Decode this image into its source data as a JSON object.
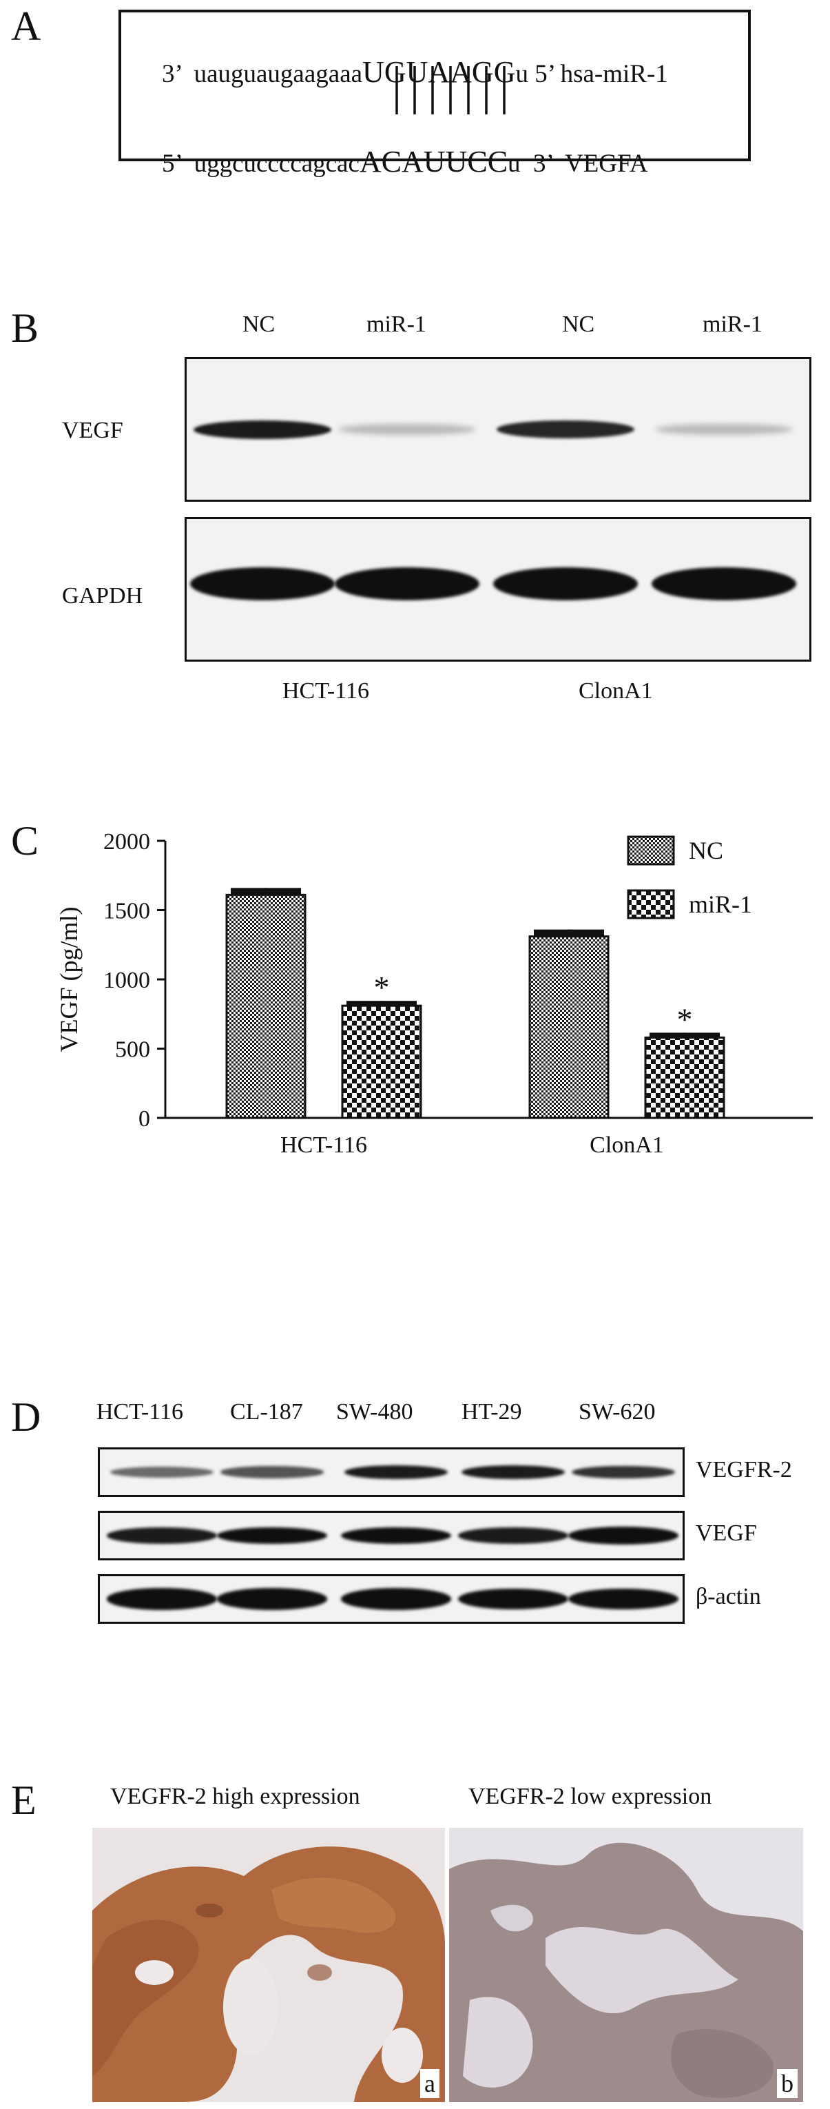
{
  "panels": {
    "a": {
      "letter": "A",
      "mirna": {
        "end3": "3’",
        "seq_lower": "uauguaugaagaaa",
        "seq_upper": "UGUAAGG",
        "seq_tail": "u",
        "end5": "5’",
        "name": "hsa-miR-1"
      },
      "target": {
        "end5": "5’",
        "seq_lower": "uggcuccccagcac",
        "seq_upper": "ACAUUCC",
        "seq_tail": "u",
        "end3": "3’",
        "name": "VEGFA"
      },
      "pair_count": 7
    },
    "b": {
      "letter": "B",
      "lanes": [
        "NC",
        "miR-1",
        "NC",
        "miR-1"
      ],
      "rows": [
        {
          "label": "VEGF",
          "levels": [
            0.8,
            0.1,
            0.75,
            0.1
          ]
        },
        {
          "label": "GAPDH",
          "levels": [
            1.0,
            1.0,
            1.0,
            1.0
          ]
        }
      ],
      "groups": [
        "HCT-116",
        "ClonA1"
      ]
    },
    "c": {
      "letter": "C"
    },
    "d": {
      "letter": "D",
      "lanes": [
        "HCT-116",
        "CL-187",
        "SW-480",
        "HT-29",
        "SW-620"
      ],
      "rows": [
        {
          "label": "VEGFR-2",
          "levels": [
            0.45,
            0.55,
            0.8,
            0.8,
            0.7
          ]
        },
        {
          "label": "VEGF",
          "levels": [
            0.8,
            0.85,
            0.85,
            0.8,
            0.95
          ]
        },
        {
          "label": "β-actin",
          "levels": [
            0.95,
            0.95,
            0.95,
            0.9,
            0.9
          ]
        }
      ]
    },
    "e": {
      "letter": "E",
      "captions": [
        "VEGFR-2 high expression",
        "VEGFR-2 low expression"
      ],
      "sublabels": [
        "a",
        "b"
      ],
      "colors": {
        "high_stain": "#b2683e",
        "low_stain": "#9d8d8e",
        "background": "#e8e6ea"
      }
    }
  },
  "chart_data": {
    "type": "bar",
    "categories": [
      "HCT-116",
      "ClonA1"
    ],
    "series": [
      {
        "name": "NC",
        "values": [
          1610,
          1310
        ],
        "errors": [
          50,
          50
        ]
      },
      {
        "name": "miR-1",
        "values": [
          810,
          580
        ],
        "errors": [
          35,
          35
        ]
      }
    ],
    "significance": [
      "*",
      "*"
    ],
    "ylabel": "VEGF (pg/ml)",
    "xlabel": "",
    "yticks": [
      "0",
      "500",
      "1000",
      "1500",
      "2000"
    ],
    "ylim": [
      0,
      2000
    ],
    "legend_placement": "top-right",
    "grid": false
  }
}
